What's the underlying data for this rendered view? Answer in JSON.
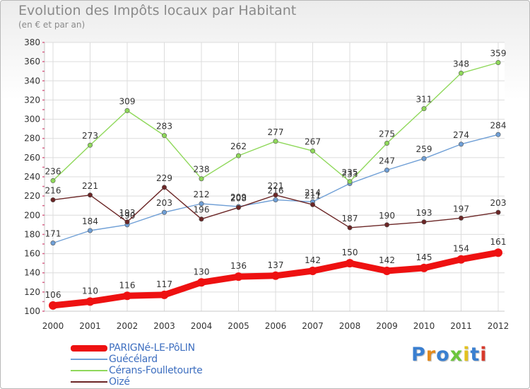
{
  "header": {
    "title": "Evolution des Impôts locaux par Habitant",
    "subtitle": "(en € et par an)"
  },
  "logo": {
    "text": "Proxiti",
    "colors": [
      "#3a7fd0",
      "#e38b1f",
      "#3a7fd0",
      "#6cc63c",
      "#e3c21f",
      "#3a7fd0",
      "#d7392b"
    ]
  },
  "chart_data": {
    "type": "line",
    "x": [
      "2000",
      "2001",
      "2002",
      "2003",
      "2004",
      "2005",
      "2006",
      "2007",
      "2008",
      "2009",
      "2010",
      "2011",
      "2012"
    ],
    "ylim": [
      100,
      380
    ],
    "yticks": [
      100,
      120,
      140,
      160,
      180,
      200,
      220,
      240,
      260,
      280,
      300,
      320,
      340,
      360,
      380
    ],
    "grid": true,
    "legend": "bottom-left",
    "series": [
      {
        "name": "PARIGNé-LE-PôLIN",
        "color": "#ee1111",
        "values": [
          106,
          110,
          116,
          117,
          130,
          136,
          137,
          142,
          150,
          142,
          145,
          154,
          161
        ]
      },
      {
        "name": "Guécélard",
        "color": "#6f9fd6",
        "values": [
          171,
          184,
          190,
          203,
          212,
          209,
          216,
          214,
          233,
          247,
          259,
          274,
          284
        ]
      },
      {
        "name": "Cérans-Foulletourte",
        "color": "#8fd85a",
        "values": [
          236,
          273,
          309,
          283,
          238,
          262,
          277,
          267,
          235,
          275,
          311,
          348,
          359
        ]
      },
      {
        "name": "Oizé",
        "color": "#6b2626",
        "values": [
          216,
          221,
          193,
          229,
          196,
          208,
          221,
          211,
          187,
          190,
          193,
          197,
          203
        ]
      }
    ],
    "labels": {
      "PARIGNé-LE-PôLIN": [
        "106",
        "110",
        "116",
        "117",
        "130",
        "136",
        "137",
        "142",
        "150",
        "142",
        "145",
        "154",
        "161"
      ],
      "Guécélard": [
        "171",
        "184",
        "190",
        "203",
        "212",
        "209",
        "216",
        "214",
        "233",
        "247",
        "259",
        "274",
        "284"
      ],
      "Cérans-Foulletourte": [
        "236",
        "273",
        "309",
        "283",
        "238",
        "262",
        "277",
        "267",
        "235",
        "275",
        "311",
        "348",
        "359"
      ],
      "Oizé": [
        "216",
        "221",
        "193",
        "229",
        "196",
        "208",
        "221",
        "211",
        "187",
        "190",
        "193",
        "197",
        "203"
      ]
    }
  }
}
